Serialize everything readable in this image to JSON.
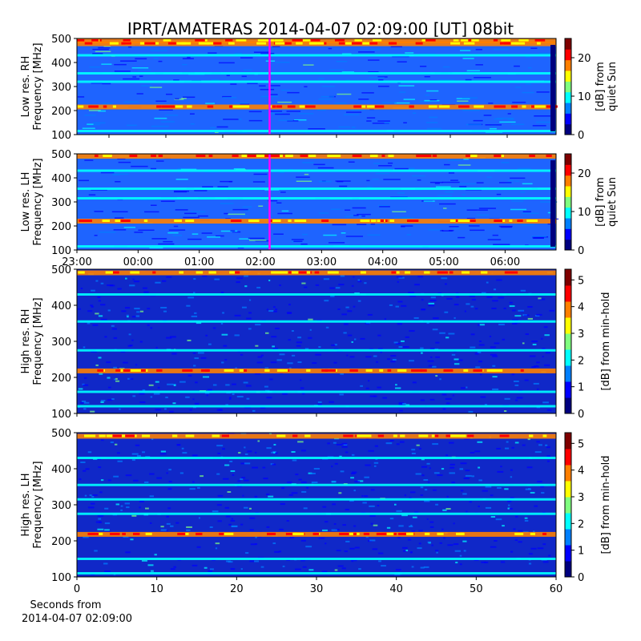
{
  "title": "IPRT/AMATERAS 2014-04-07 02:09:00 [UT]   08bit",
  "colors": {
    "marker": "#ff00ff",
    "cmap": [
      "#00007f",
      "#0000ff",
      "#007fff",
      "#00ffff",
      "#7fff7f",
      "#ffff00",
      "#ff7f00",
      "#ff0000",
      "#7f0000"
    ]
  },
  "footer": {
    "line1": "Seconds from",
    "line2": "2014-04-07 02:09:00"
  },
  "chart_data": [
    {
      "type": "heatmap",
      "name": "low-res-rh",
      "ylabel1": "Low res. RH",
      "ylabel2": "Frequency [MHz]",
      "ylim": [
        100,
        500
      ],
      "yticks": [
        "100",
        "200",
        "300",
        "400",
        "500"
      ],
      "xticks": [],
      "colorbar": {
        "label1": "[dB] from",
        "label2": "quiet Sun",
        "range": [
          0,
          25
        ],
        "ticks": [
          "0",
          "10",
          "20"
        ]
      },
      "marker_time": "02:09",
      "bands_mhz": [
        490,
        478,
        430,
        355,
        320,
        215,
        115
      ]
    },
    {
      "type": "heatmap",
      "name": "low-res-lh",
      "ylabel1": "Low res. LH",
      "ylabel2": "Frequency [MHz]",
      "ylim": [
        100,
        500
      ],
      "yticks": [
        "100",
        "200",
        "300",
        "400",
        "500"
      ],
      "xticks": [
        "23:00",
        "00:00",
        "01:00",
        "02:00",
        "03:00",
        "04:00",
        "05:00",
        "06:00"
      ],
      "colorbar": {
        "label1": "[dB] from",
        "label2": "quiet Sun",
        "range": [
          0,
          25
        ],
        "ticks": [
          "0",
          "10",
          "20"
        ]
      },
      "marker_time": "02:09",
      "bands_mhz": [
        490,
        430,
        355,
        315,
        220,
        115
      ]
    },
    {
      "type": "heatmap",
      "name": "high-res-rh",
      "ylabel1": "High res. RH",
      "ylabel2": "Frequency [MHz]",
      "ylim": [
        100,
        500
      ],
      "yticks": [
        "100",
        "200",
        "300",
        "400",
        "500"
      ],
      "xticks": [],
      "colorbar": {
        "label1": "[dB] from min-hold",
        "label2": "",
        "range": [
          0,
          5.4
        ],
        "ticks": [
          "0",
          "1",
          "2",
          "3",
          "4",
          "5"
        ]
      },
      "bands_mhz": [
        490,
        430,
        355,
        275,
        218,
        160,
        120
      ]
    },
    {
      "type": "heatmap",
      "name": "high-res-lh",
      "ylabel1": "High res. LH",
      "ylabel2": "Frequency [MHz]",
      "ylim": [
        100,
        500
      ],
      "yticks": [
        "100",
        "200",
        "300",
        "400",
        "500"
      ],
      "xticks": [
        "0",
        "10",
        "20",
        "30",
        "40",
        "50",
        "60"
      ],
      "xlim": [
        0,
        60
      ],
      "colorbar": {
        "label1": "[dB] from min-hold",
        "label2": "",
        "range": [
          0,
          5.4
        ],
        "ticks": [
          "0",
          "1",
          "2",
          "3",
          "4",
          "5"
        ]
      },
      "bands_mhz": [
        490,
        430,
        355,
        315,
        275,
        218,
        150,
        110
      ]
    }
  ]
}
